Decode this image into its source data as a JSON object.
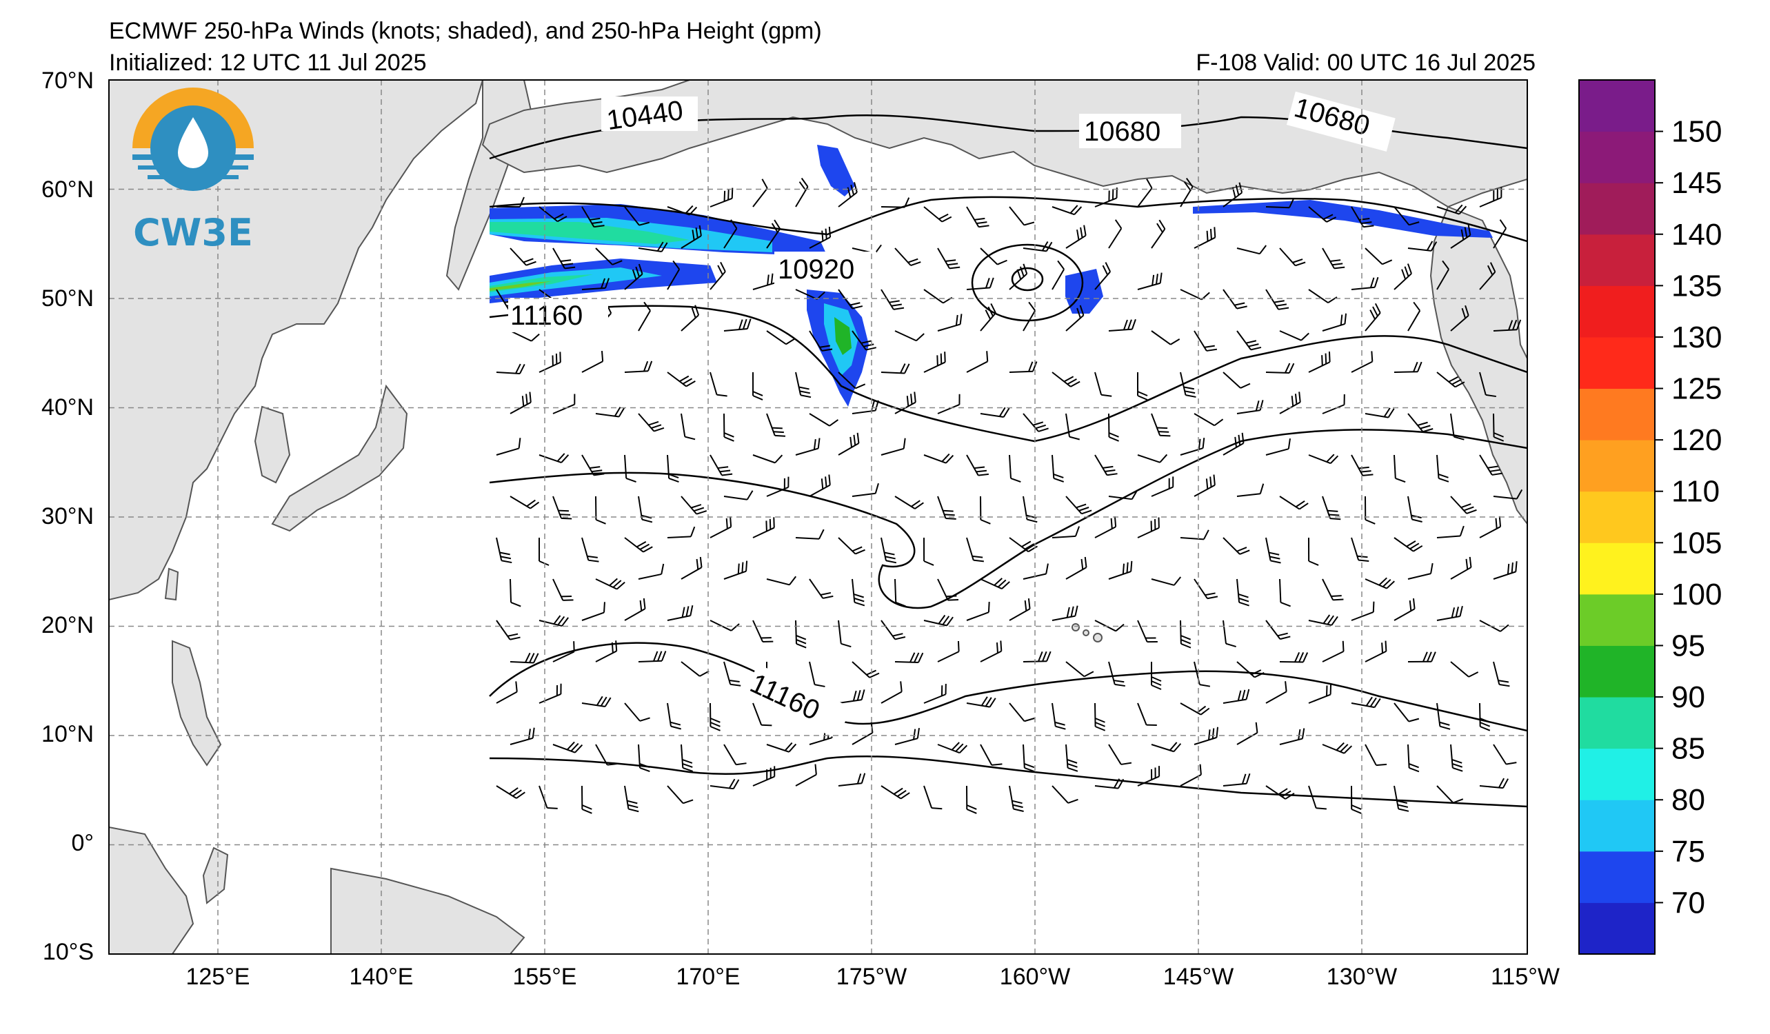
{
  "header": {
    "title": "ECMWF 250-hPa Winds (knots; shaded), and 250-hPa Height (gpm)",
    "initialized": "Initialized: 12 UTC 11 Jul 2025",
    "valid": "F-108  Valid: 00 UTC 16 Jul 2025"
  },
  "logo": {
    "text": "CW3E"
  },
  "map": {
    "lat_labels": [
      "70°N",
      "60°N",
      "50°N",
      "40°N",
      "30°N",
      "20°N",
      "10°N",
      "0°",
      "10°S"
    ],
    "lon_labels": [
      "125°E",
      "140°E",
      "155°E",
      "170°E",
      "175°W",
      "160°W",
      "145°W",
      "130°W",
      "115°W"
    ],
    "contour_labels": [
      "10440",
      "10680",
      "10680",
      "10920",
      "11160",
      "11160"
    ]
  },
  "colorbar": {
    "ticks": [
      "150",
      "145",
      "140",
      "135",
      "130",
      "125",
      "120",
      "110",
      "105",
      "100",
      "95",
      "90",
      "85",
      "80",
      "75",
      "70"
    ],
    "colors": [
      "#7a1c8a",
      "#8c1a78",
      "#a01c5a",
      "#c8203c",
      "#f01e1e",
      "#ff2a1a",
      "#ff7a20",
      "#ffa020",
      "#ffc81e",
      "#fff21e",
      "#6ccc28",
      "#20b428",
      "#20dca0",
      "#20f0e6",
      "#20c8f5",
      "#1e46ee",
      "#1e24c8"
    ]
  }
}
